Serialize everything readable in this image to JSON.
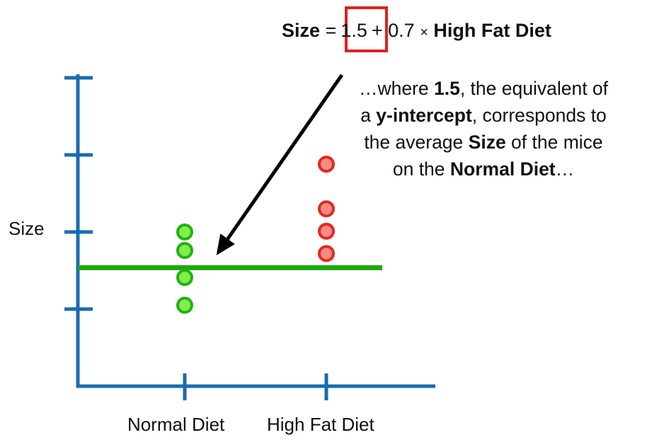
{
  "equation": {
    "lhs": "Size",
    "equals": "=",
    "intercept": "1.5",
    "plus_slope": "+ 0.7",
    "times": "×",
    "variable": "High Fat Diet",
    "highlight_color": "#e02020"
  },
  "caption": {
    "lines": [
      [
        {
          "text": "…where ",
          "bold": false
        },
        {
          "text": "1.5",
          "bold": true
        },
        {
          "text": ", the equivalent of",
          "bold": false
        }
      ],
      [
        {
          "text": "a ",
          "bold": false
        },
        {
          "text": "y-intercept",
          "bold": true
        },
        {
          "text": ", corresponds to",
          "bold": false
        }
      ],
      [
        {
          "text": "the average ",
          "bold": false
        },
        {
          "text": "Size",
          "bold": true
        },
        {
          "text": " of the mice",
          "bold": false
        }
      ],
      [
        {
          "text": "on the ",
          "bold": false
        },
        {
          "text": "Normal Diet",
          "bold": true
        },
        {
          "text": "…",
          "bold": false
        }
      ]
    ]
  },
  "chart_data": {
    "type": "scatter",
    "ylabel": "Size",
    "categories": [
      "Normal Diet",
      "High Fat Diet"
    ],
    "ylim": [
      0,
      4
    ],
    "y_ticks": [
      1,
      2,
      3,
      4
    ],
    "y_tick_labels_shown": false,
    "grid": false,
    "series": [
      {
        "category": "Normal Diet",
        "values": [
          2.0,
          1.76,
          1.41,
          1.05
        ],
        "color": "#22b015",
        "fill": "#7ff04a"
      },
      {
        "category": "High Fat Diet",
        "values": [
          2.88,
          2.3,
          2.01,
          1.72
        ],
        "color": "#e02a20",
        "fill": "#f98a84"
      }
    ],
    "reference_line": {
      "value": 1.5,
      "color": "#1fa80f",
      "meaning": "Normal Diet mean (intercept)"
    },
    "axis_color": "#1a6bb0",
    "arrow_color": "#000000"
  }
}
